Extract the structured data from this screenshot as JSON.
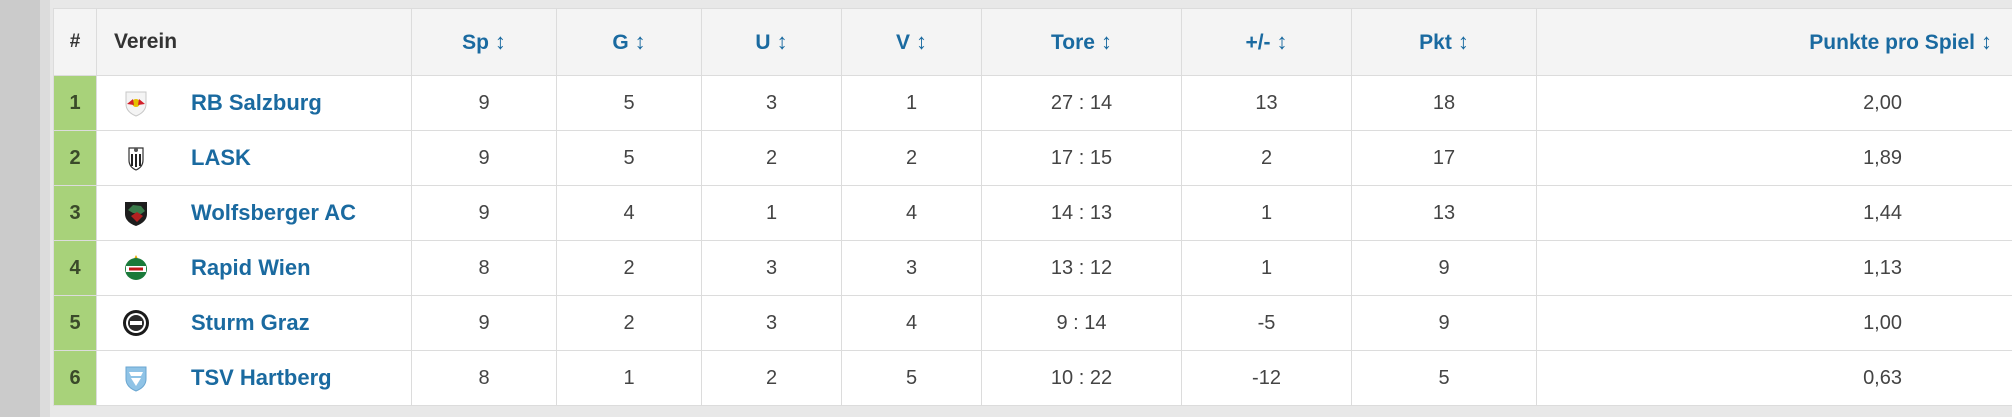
{
  "header": {
    "rank": "#",
    "club": "Verein",
    "sp": "Sp",
    "g": "G",
    "u": "U",
    "v": "V",
    "tore": "Tore",
    "diff": "+/-",
    "pkt": "Pkt",
    "ppg": "Punkte pro Spiel",
    "sort_glyph": "↕"
  },
  "rows": [
    {
      "rank": "1",
      "club": "RB Salzburg",
      "crest": "red-bull-crest-icon",
      "sp": "9",
      "g": "5",
      "u": "3",
      "v": "1",
      "tore": "27 : 14",
      "diff": "13",
      "pkt": "18",
      "ppg": "2,00"
    },
    {
      "rank": "2",
      "club": "LASK",
      "crest": "lask-crest-icon",
      "sp": "9",
      "g": "5",
      "u": "2",
      "v": "2",
      "tore": "17 : 15",
      "diff": "2",
      "pkt": "17",
      "ppg": "1,89"
    },
    {
      "rank": "3",
      "club": "Wolfsberger AC",
      "crest": "wolf-crest-icon",
      "sp": "9",
      "g": "4",
      "u": "1",
      "v": "4",
      "tore": "14 : 13",
      "diff": "1",
      "pkt": "13",
      "ppg": "1,44"
    },
    {
      "rank": "4",
      "club": "Rapid Wien",
      "crest": "rapid-crest-icon",
      "sp": "8",
      "g": "2",
      "u": "3",
      "v": "3",
      "tore": "13 : 12",
      "diff": "1",
      "pkt": "9",
      "ppg": "1,13"
    },
    {
      "rank": "5",
      "club": "Sturm Graz",
      "crest": "sturm-crest-icon",
      "sp": "9",
      "g": "2",
      "u": "3",
      "v": "4",
      "tore": "9 : 14",
      "diff": "-5",
      "pkt": "9",
      "ppg": "1,00"
    },
    {
      "rank": "6",
      "club": "TSV Hartberg",
      "crest": "hartberg-crest-icon",
      "sp": "8",
      "g": "1",
      "u": "2",
      "v": "5",
      "tore": "10 : 22",
      "diff": "-12",
      "pkt": "5",
      "ppg": "0,63"
    }
  ],
  "colors": {
    "link": "#1a6aa0",
    "rank_bg": "#a8d27a",
    "header_bg": "#f4f4f4"
  }
}
